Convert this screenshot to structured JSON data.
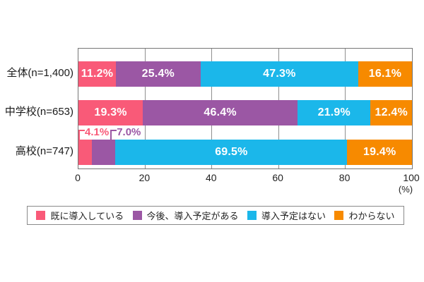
{
  "chart_data": {
    "type": "bar",
    "orientation": "horizontal",
    "stacked": true,
    "title": "",
    "categories": [
      "全体(n=1,400)",
      "中学校(n=653)",
      "高校(n=747)"
    ],
    "series": [
      {
        "name": "既に導入している",
        "color": "#F95A78",
        "values": [
          11.2,
          19.3,
          4.1
        ]
      },
      {
        "name": "今後、導入予定がある",
        "color": "#9B57A4",
        "values": [
          25.4,
          46.4,
          7.0
        ]
      },
      {
        "name": "導入予定はない",
        "color": "#1BB7EA",
        "values": [
          47.3,
          21.9,
          69.5
        ]
      },
      {
        "name": "わからない",
        "color": "#F78A00",
        "values": [
          16.1,
          12.4,
          19.4
        ]
      }
    ],
    "value_labels": [
      [
        "11.2%",
        "25.4%",
        "47.3%",
        "16.1%"
      ],
      [
        "19.3%",
        "46.4%",
        "21.9%",
        "12.4%"
      ],
      [
        "4.1%",
        "7.0%",
        "69.5%",
        "19.4%"
      ]
    ],
    "label_placement": [
      [
        "inside",
        "inside",
        "inside",
        "inside"
      ],
      [
        "inside",
        "inside",
        "inside",
        "inside"
      ],
      [
        "outside",
        "outside",
        "inside",
        "inside"
      ]
    ],
    "xlim": [
      0,
      100
    ],
    "x_ticks": [
      0,
      20,
      40,
      60,
      80,
      100
    ],
    "x_unit": "(%)",
    "grid": true,
    "legend_position": "bottom"
  }
}
